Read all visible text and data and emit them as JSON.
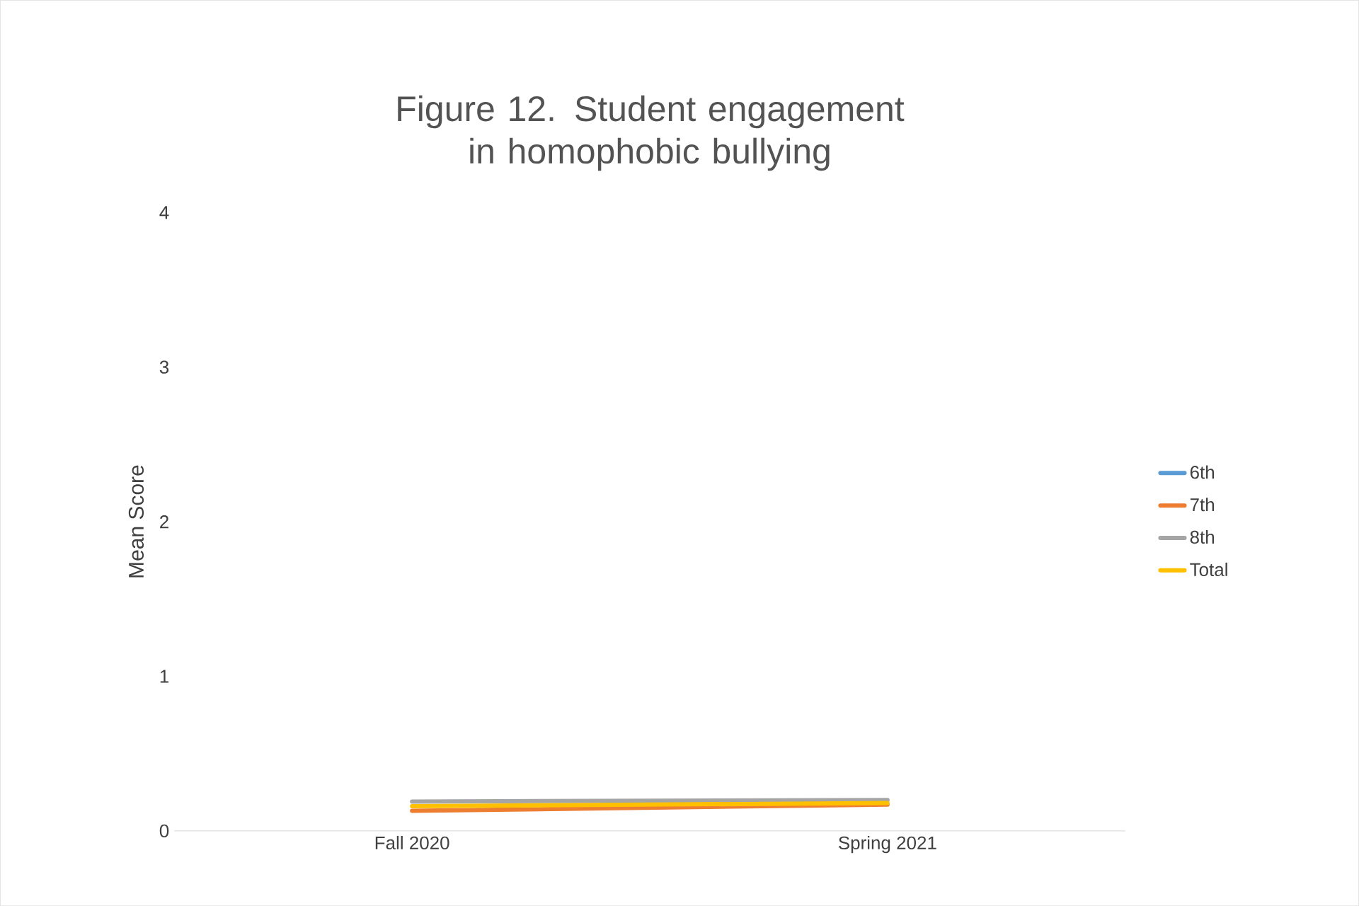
{
  "chart_data": {
    "type": "line",
    "title": "Figure 12. Student engagement in homophobic bullying",
    "ylabel": "Mean Score",
    "categories": [
      "Fall 2020",
      "Spring 2021"
    ],
    "series": [
      {
        "name": "6th",
        "color": "#5b9bd5",
        "values": [
          null,
          null
        ]
      },
      {
        "name": "7th",
        "color": "#ed7d31",
        "values": [
          0.13,
          0.17
        ]
      },
      {
        "name": "8th",
        "color": "#a5a5a5",
        "values": [
          0.19,
          0.2
        ]
      },
      {
        "name": "Total",
        "color": "#ffc000",
        "values": [
          0.16,
          0.18
        ]
      }
    ],
    "ylim": [
      0,
      4
    ],
    "yticks": [
      0,
      1,
      2,
      3,
      4
    ],
    "legend": "right",
    "marker": "none",
    "line_style": "solid"
  }
}
